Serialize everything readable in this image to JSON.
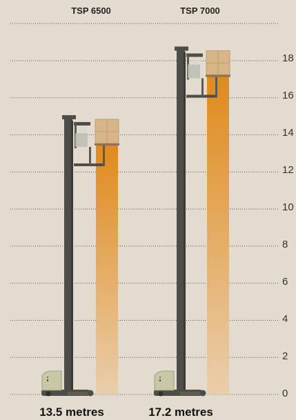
{
  "headers": [
    "TSP 6500",
    "TSP 7000"
  ],
  "footers": [
    "13.5 metres",
    "17.2 metres"
  ],
  "y_ticks": [
    "0",
    "2",
    "4",
    "6",
    "8",
    "10",
    "12",
    "14",
    "16",
    "18"
  ],
  "colors": {
    "background": "#e4dbcf",
    "mast": "#4e4e48",
    "column_top": "#e08a1c",
    "column_bottom": "#e9ceac",
    "dotted_line": "#555555",
    "cab": "#c9c8a6",
    "pallet": "#d7b587"
  },
  "chart_data": {
    "type": "bar",
    "categories": [
      "TSP 6500",
      "TSP 7000"
    ],
    "values": [
      13.5,
      17.2
    ],
    "ylim": [
      0,
      18
    ],
    "grid": true,
    "legend": "none"
  }
}
